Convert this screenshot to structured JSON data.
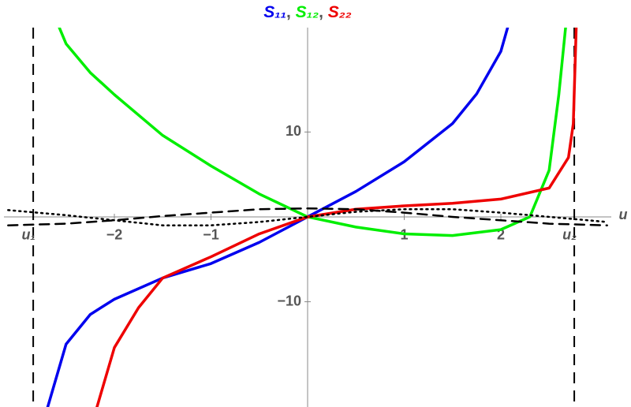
{
  "chart_data": {
    "type": "line",
    "legend_separator": ", ",
    "x_label": "u",
    "xlim": [
      -3.143,
      3.143
    ],
    "ylim": [
      -22.4,
      22.3
    ],
    "xticks": [
      {
        "value": -2.84,
        "label": "u₁"
      },
      {
        "value": -2,
        "label": "−2"
      },
      {
        "value": -1,
        "label": "−1"
      },
      1,
      2,
      {
        "value": 2.76,
        "label": "u₂"
      }
    ],
    "yticks": [
      {
        "value": -10,
        "label": "−10"
      },
      10
    ],
    "series": [
      {
        "name": "S₁₁",
        "color": "#0000ee",
        "style": "solid",
        "x": [
          -2.69,
          -2.5,
          -2.25,
          -2,
          -1.5,
          -1,
          -0.5,
          0,
          0.5,
          1,
          1.5,
          1.75,
          2,
          2.07
        ],
        "values": [
          -22.4,
          -15,
          -11.5,
          -9.7,
          -7.2,
          -5.5,
          -3,
          0,
          3,
          6.5,
          11,
          14.5,
          19.5,
          22.3
        ]
      },
      {
        "name": "S₁₂",
        "color": "#00ee00",
        "style": "solid",
        "x": [
          -2.57,
          -2.5,
          -2.25,
          -2,
          -1.5,
          -1,
          -0.5,
          0,
          0.5,
          1,
          1.5,
          2,
          2.3,
          2.5,
          2.6,
          2.67
        ],
        "values": [
          22.3,
          20.4,
          17,
          14.4,
          9.6,
          6,
          2.7,
          0,
          -1.2,
          -2,
          -2.2,
          -1.5,
          0,
          5.5,
          14.4,
          22.3
        ]
      },
      {
        "name": "S₂₂",
        "color": "#ee0000",
        "style": "solid",
        "x": [
          -2.18,
          -2,
          -1.75,
          -1.5,
          -1,
          -0.5,
          0,
          0.5,
          1,
          1.5,
          2,
          2.5,
          2.7,
          2.75,
          2.78
        ],
        "values": [
          -22.4,
          -15.4,
          -10.7,
          -7.2,
          -4.7,
          -2,
          0,
          0.9,
          1.3,
          1.6,
          2.1,
          3.4,
          7,
          11,
          22.3
        ]
      },
      {
        "color": "#000000",
        "style": "dashed",
        "x": [
          -3.1,
          -2.5,
          -2,
          -1.5,
          -1,
          -0.5,
          0,
          0.5,
          1,
          1.5,
          2,
          2.5,
          3.1
        ],
        "values": [
          -1,
          -0.8,
          -0.4,
          0.1,
          0.5,
          0.9,
          1,
          0.9,
          0.5,
          0,
          -0.4,
          -0.8,
          -1
        ]
      },
      {
        "color": "#000000",
        "style": "dotted",
        "x": [
          -3.1,
          -2.5,
          -2,
          -1.5,
          -1,
          -0.5,
          0,
          0.5,
          1,
          1.5,
          2,
          2.5,
          3.1
        ],
        "values": [
          0.8,
          0.2,
          -0.4,
          -1,
          -1,
          -0.6,
          0,
          0.6,
          0.9,
          0.9,
          0.5,
          0,
          -0.6
        ]
      }
    ]
  }
}
